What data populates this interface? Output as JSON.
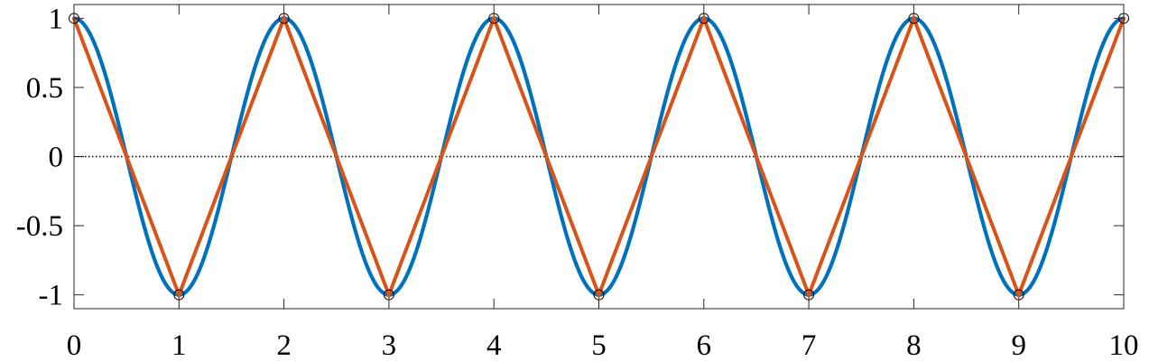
{
  "chart_data": {
    "type": "line",
    "title": "",
    "xlabel": "",
    "ylabel": "",
    "xlim": [
      0,
      10
    ],
    "ylim": [
      -1.1,
      1.1
    ],
    "x_ticks": [
      0,
      1,
      2,
      3,
      4,
      5,
      6,
      7,
      8,
      9,
      10
    ],
    "x_tick_labels": [
      "0",
      "1",
      "2",
      "3",
      "4",
      "5",
      "6",
      "7",
      "8",
      "9",
      "10"
    ],
    "y_ticks": [
      1,
      0.5,
      0,
      -0.5,
      -1
    ],
    "y_tick_labels": [
      "1",
      "0.5",
      "0",
      "-0.5",
      "-1"
    ],
    "grid": false,
    "legend": "none",
    "zero_line": {
      "y": 0,
      "style": "dotted",
      "color": "#000000"
    },
    "series": [
      {
        "kind": "continuous-curve",
        "function": "cos(pi*x)",
        "color": "#0072BD"
      },
      {
        "kind": "polyline-with-markers",
        "color": "#D95319",
        "marker": "open-circle",
        "marker_color": "#000000",
        "x": [
          0,
          1,
          2,
          3,
          4,
          5,
          6,
          7,
          8,
          9,
          10
        ],
        "values": [
          1,
          -1,
          1,
          -1,
          1,
          -1,
          1,
          -1,
          1,
          -1,
          1
        ]
      }
    ]
  }
}
